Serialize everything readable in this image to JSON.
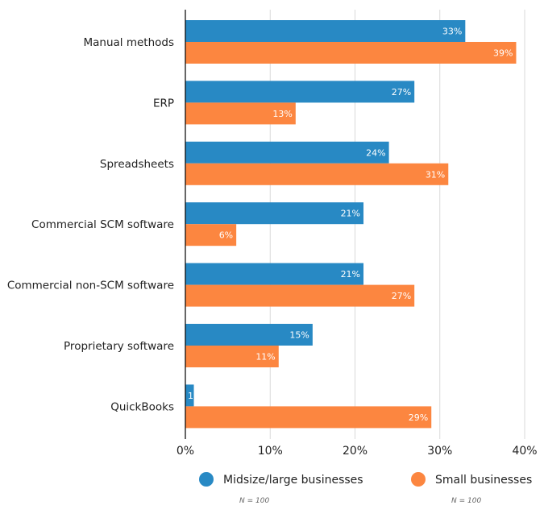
{
  "chart_data": {
    "type": "bar",
    "orientation": "horizontal",
    "title": "",
    "xlabel": "",
    "ylabel": "",
    "categories": [
      "Manual methods",
      "ERP",
      "Spreadsheets",
      "Commercial SCM software",
      "Commercial non-SCM software",
      "Proprietary software",
      "QuickBooks"
    ],
    "series": [
      {
        "name": "Midsize/large businesses",
        "color": "#2889c4",
        "values": [
          33,
          27,
          24,
          21,
          21,
          15,
          1
        ],
        "note": "N = 100"
      },
      {
        "name": "Small businesses",
        "color": "#fc8640",
        "values": [
          39,
          13,
          31,
          6,
          27,
          11,
          29
        ],
        "note": "N = 100"
      }
    ],
    "xlim": [
      0,
      40
    ],
    "xticks": [
      "0%",
      "10%",
      "20%",
      "30%",
      "40%"
    ],
    "value_suffix": "%",
    "grid": true,
    "legend_position": "bottom"
  },
  "legend": [
    {
      "label": "Midsize/large businesses",
      "note": "N = 100",
      "color": "#2889c4"
    },
    {
      "label": "Small businesses",
      "note": "N = 100",
      "color": "#fc8640"
    }
  ]
}
